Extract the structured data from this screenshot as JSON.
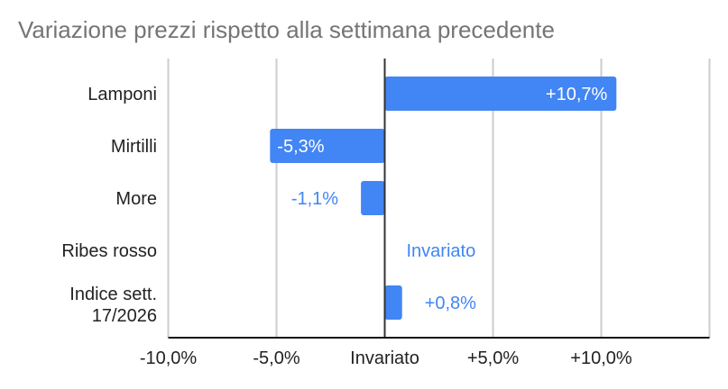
{
  "title": "Variazione prezzi rispetto alla settimana precedente",
  "chart_data": {
    "type": "bar",
    "orientation": "horizontal",
    "title": "Variazione prezzi rispetto alla settimana precedente",
    "categories": [
      "Lamponi",
      "Mirtilli",
      "More",
      "Ribes rosso",
      "Indice sett. 17/2026"
    ],
    "values": [
      10.7,
      -5.3,
      -1.1,
      0,
      0.8
    ],
    "data_labels": [
      "+10,7%",
      "-5,3%",
      "-1,1%",
      "Invariato",
      "+0,8%"
    ],
    "xlim": [
      -10,
      15
    ],
    "x_ticks": [
      -10,
      -5,
      0,
      5,
      10
    ],
    "x_tick_labels": [
      "-10,0%",
      "-5,0%",
      "Invariato",
      "+5,0%",
      "+10,0%"
    ],
    "grid": true,
    "bar_color": "#4285f4",
    "xlabel": "",
    "ylabel": ""
  }
}
